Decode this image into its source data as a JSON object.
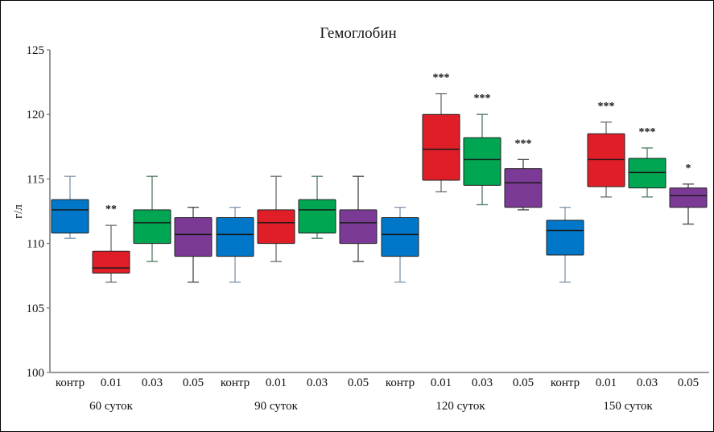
{
  "chart_data": {
    "type": "box",
    "title": "Гемоглобин",
    "xlabel": "",
    "ylabel": "г/л",
    "ylim": [
      100,
      125
    ],
    "yticks": [
      100,
      105,
      110,
      115,
      120,
      125
    ],
    "grid": false,
    "legend": "none",
    "colors": {
      "контр": "#0077c8",
      "0.01": "#e01e27",
      "0.03": "#00a651",
      "0.05": "#7b3a96"
    },
    "groups": [
      {
        "label": "60 суток",
        "boxes": [
          {
            "category": "контр",
            "whisker_high": 115.2,
            "q3": 113.4,
            "median": 112.6,
            "q1": 110.8,
            "whisker_low": 110.4,
            "significance": ""
          },
          {
            "category": "0.01",
            "whisker_high": 111.4,
            "q3": 109.4,
            "median": 108.1,
            "q1": 107.7,
            "whisker_low": 107.0,
            "significance": "**"
          },
          {
            "category": "0.03",
            "whisker_high": 115.2,
            "q3": 112.6,
            "median": 111.6,
            "q1": 110.0,
            "whisker_low": 108.6,
            "significance": ""
          },
          {
            "category": "0.05",
            "whisker_high": 112.8,
            "q3": 112.0,
            "median": 110.7,
            "q1": 109.0,
            "whisker_low": 107.0,
            "significance": ""
          }
        ]
      },
      {
        "label": "90 суток",
        "boxes": [
          {
            "category": "контр",
            "whisker_high": 112.8,
            "q3": 112.0,
            "median": 110.7,
            "q1": 109.0,
            "whisker_low": 107.0,
            "significance": ""
          },
          {
            "category": "0.01",
            "whisker_high": 115.2,
            "q3": 112.6,
            "median": 111.6,
            "q1": 110.0,
            "whisker_low": 108.6,
            "significance": ""
          },
          {
            "category": "0.03",
            "whisker_high": 115.2,
            "q3": 113.4,
            "median": 112.6,
            "q1": 110.8,
            "whisker_low": 110.4,
            "significance": ""
          },
          {
            "category": "0.05",
            "whisker_high": 115.2,
            "q3": 112.6,
            "median": 111.6,
            "q1": 110.0,
            "whisker_low": 108.6,
            "significance": ""
          }
        ]
      },
      {
        "label": "120 суток",
        "boxes": [
          {
            "category": "контр",
            "whisker_high": 112.8,
            "q3": 112.0,
            "median": 110.7,
            "q1": 109.0,
            "whisker_low": 107.0,
            "significance": ""
          },
          {
            "category": "0.01",
            "whisker_high": 121.6,
            "q3": 120.0,
            "median": 117.3,
            "q1": 114.9,
            "whisker_low": 114.0,
            "significance": "***"
          },
          {
            "category": "0.03",
            "whisker_high": 120.0,
            "q3": 118.2,
            "median": 116.5,
            "q1": 114.5,
            "whisker_low": 113.0,
            "significance": "***"
          },
          {
            "category": "0.05",
            "whisker_high": 116.5,
            "q3": 115.8,
            "median": 114.7,
            "q1": 112.8,
            "whisker_low": 112.6,
            "significance": "***"
          }
        ]
      },
      {
        "label": "150 суток",
        "boxes": [
          {
            "category": "контр",
            "whisker_high": 112.8,
            "q3": 111.8,
            "median": 111.0,
            "q1": 109.1,
            "whisker_low": 107.0,
            "significance": ""
          },
          {
            "category": "0.01",
            "whisker_high": 119.4,
            "q3": 118.5,
            "median": 116.5,
            "q1": 114.4,
            "whisker_low": 113.6,
            "significance": "***"
          },
          {
            "category": "0.03",
            "whisker_high": 117.4,
            "q3": 116.6,
            "median": 115.5,
            "q1": 114.3,
            "whisker_low": 113.6,
            "significance": "***"
          },
          {
            "category": "0.05",
            "whisker_high": 114.6,
            "q3": 114.3,
            "median": 113.7,
            "q1": 112.8,
            "whisker_low": 111.5,
            "significance": "*"
          }
        ]
      }
    ]
  }
}
